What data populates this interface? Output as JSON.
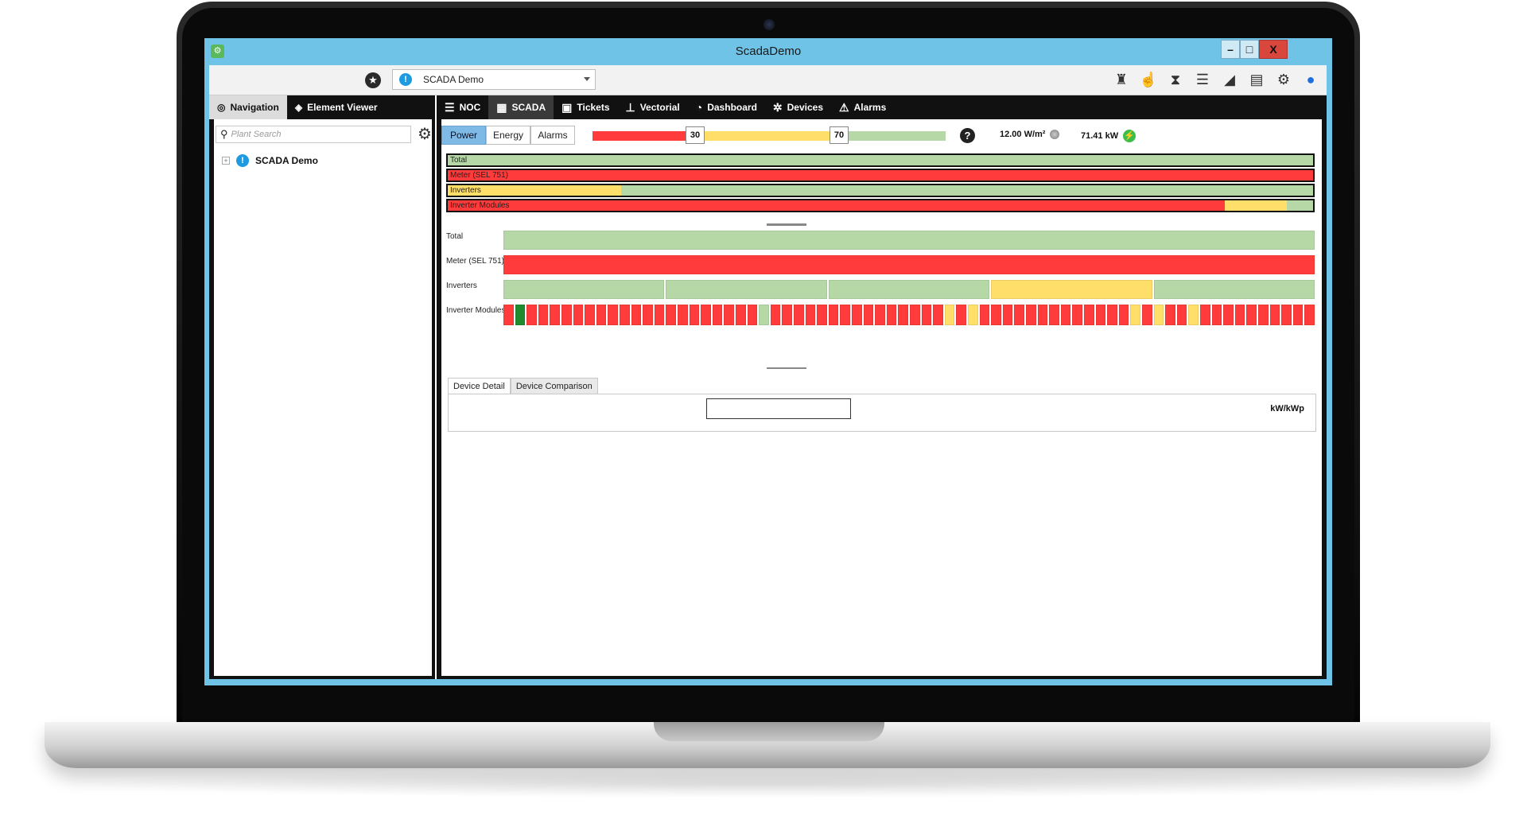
{
  "window": {
    "title": "ScadaDemo",
    "minimize": "–",
    "maximize": "□",
    "close": "X"
  },
  "toolbar": {
    "plant_selected": "SCADA Demo",
    "icons": [
      "tower-icon",
      "hand-pointer-icon",
      "hourglass-icon",
      "database-icon",
      "area-chart-icon",
      "document-icon",
      "gear-icon",
      "user-icon"
    ]
  },
  "left": {
    "tabs": [
      {
        "label": "Navigation",
        "icon": "compass-icon"
      },
      {
        "label": "Element Viewer",
        "icon": "cube-icon"
      }
    ],
    "search_placeholder": "Plant Search",
    "tree": [
      {
        "label": "SCADA Demo",
        "expander": "+"
      }
    ]
  },
  "main": {
    "tabs": [
      {
        "label": "NOC",
        "icon": "list-icon"
      },
      {
        "label": "SCADA",
        "icon": "grid-icon"
      },
      {
        "label": "Tickets",
        "icon": "clipboard-icon"
      },
      {
        "label": "Vectorial",
        "icon": "hierarchy-icon"
      },
      {
        "label": "Dashboard",
        "icon": "gauge-icon"
      },
      {
        "label": "Devices",
        "icon": "cogs-icon"
      },
      {
        "label": "Alarms",
        "icon": "warning-icon"
      }
    ],
    "subtabs": [
      "Power",
      "Energy",
      "Alarms"
    ],
    "threshold_low": "30",
    "threshold_high": "70",
    "irradiance": "12.00 W/m²",
    "power": "71.41 kW",
    "summary_bars": [
      {
        "label": "Total",
        "segments": [
          {
            "color": "green",
            "fraction": 1.0
          }
        ]
      },
      {
        "label": "Meter (SEL 751)",
        "segments": [
          {
            "color": "red",
            "fraction": 1.0
          }
        ]
      },
      {
        "label": "Inverters",
        "segments": [
          {
            "color": "yellow",
            "fraction": 0.2
          },
          {
            "color": "green",
            "fraction": 0.8
          }
        ]
      },
      {
        "label": "Inverter Modules",
        "segments": [
          {
            "color": "red",
            "fraction": 0.898
          },
          {
            "color": "yellow",
            "fraction": 0.072
          },
          {
            "color": "green",
            "fraction": 0.03
          }
        ]
      }
    ],
    "grid_rows": [
      {
        "label": "Total",
        "cells": [
          "green"
        ]
      },
      {
        "label": "Meter (SEL 751)",
        "cells": [
          "red"
        ]
      },
      {
        "label": "Inverters",
        "cells": [
          "green",
          "green",
          "green",
          "yellow",
          "green"
        ]
      },
      {
        "label": "Inverter Modules",
        "cells": [
          "red",
          "darkgreen",
          "red",
          "red",
          "red",
          "red",
          "red",
          "red",
          "red",
          "red",
          "red",
          "red",
          "red",
          "red",
          "red",
          "red",
          "red",
          "red",
          "red",
          "red",
          "red",
          "red",
          "green",
          "red",
          "red",
          "red",
          "red",
          "red",
          "red",
          "red",
          "red",
          "red",
          "red",
          "red",
          "red",
          "red",
          "red",
          "red",
          "yellow",
          "red",
          "yellow",
          "red",
          "red",
          "red",
          "red",
          "red",
          "red",
          "red",
          "red",
          "red",
          "red",
          "red",
          "red",
          "red",
          "yellow",
          "red",
          "yellow",
          "red",
          "red",
          "yellow",
          "red",
          "red",
          "red",
          "red",
          "red",
          "red",
          "red",
          "red",
          "red",
          "red"
        ]
      }
    ],
    "detail_tabs": [
      "Device Detail",
      "Device Comparison"
    ],
    "unit": "kW/kWp"
  },
  "colors": {
    "red": "#ff3b3b",
    "yellow": "#ffde6a",
    "green": "#b5d8a6",
    "darkgreen": "#1f8a2e",
    "accent": "#6ec3e6"
  }
}
